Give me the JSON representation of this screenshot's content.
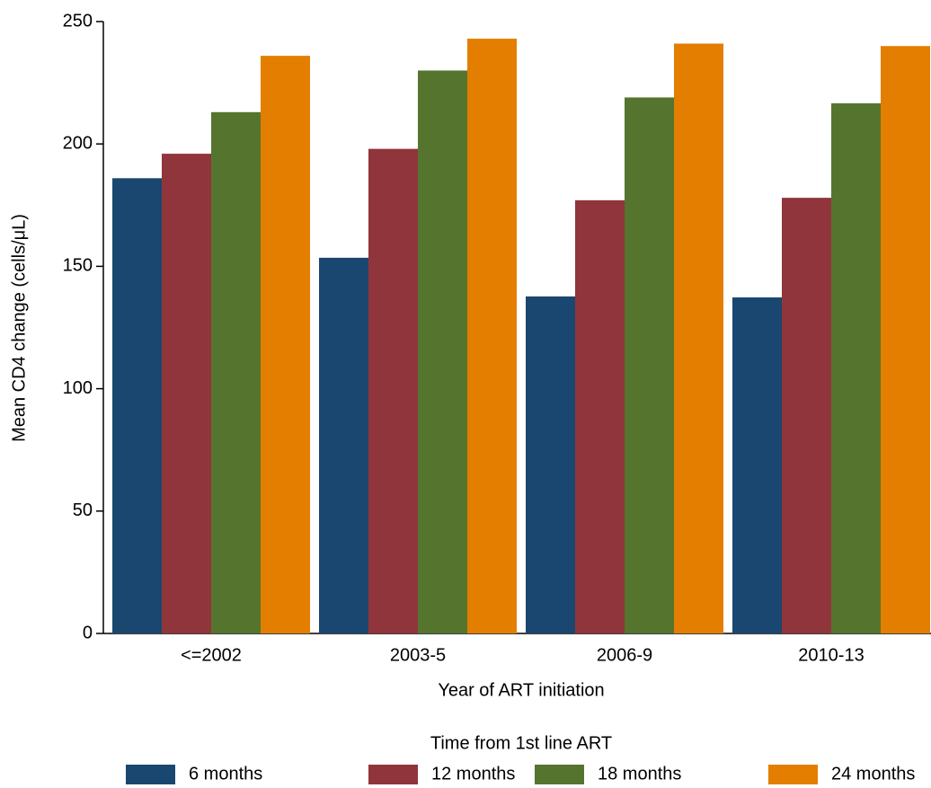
{
  "chart_data": {
    "type": "bar",
    "y_label": "Mean CD4 change (cells/μL)",
    "x_label": "Year of ART initiation",
    "legend_title": "Time from 1st line ART",
    "categories": [
      "<=2002",
      "2003-5",
      "2006-9",
      "2010-13"
    ],
    "series": [
      {
        "name": "6 months",
        "color": "#1a476f",
        "values": [
          186,
          153.5,
          137.7,
          137.3
        ]
      },
      {
        "name": "12 months",
        "color": "#90353b",
        "values": [
          196,
          198,
          177,
          178
        ]
      },
      {
        "name": "18 months",
        "color": "#55752f",
        "values": [
          213,
          230,
          219,
          216.6
        ]
      },
      {
        "name": "24 months",
        "color": "#e37e00",
        "values": [
          236,
          243,
          241,
          240
        ]
      }
    ],
    "ylim": [
      0,
      250
    ],
    "yticks": [
      0,
      50,
      100,
      150,
      200,
      250
    ],
    "legend": "bottom"
  }
}
